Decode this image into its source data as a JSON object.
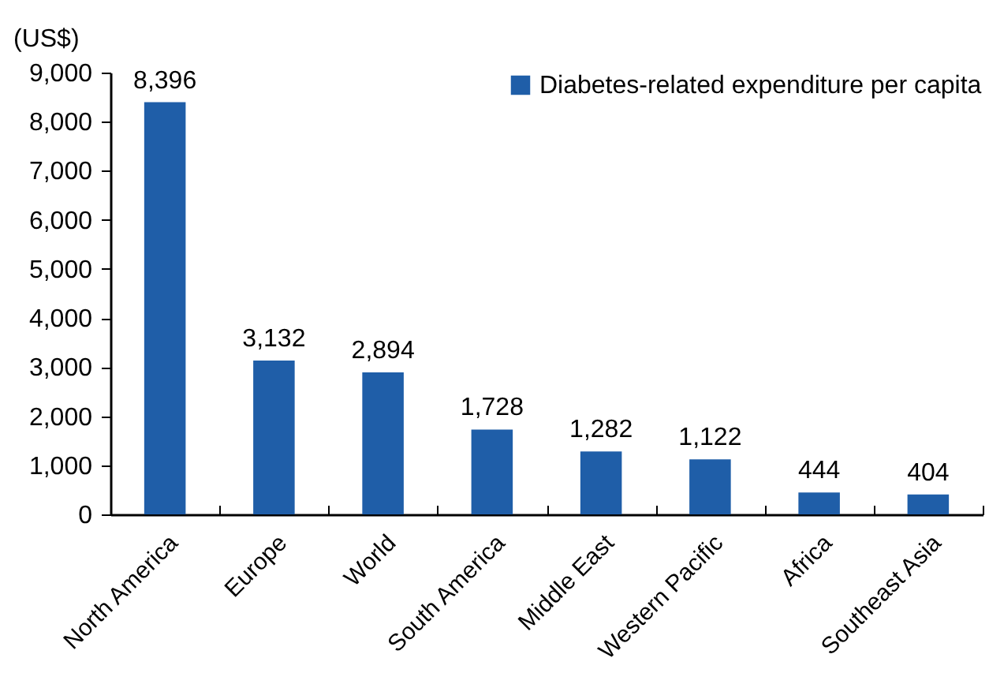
{
  "chart_data": {
    "type": "bar",
    "ylabel": "(US$)",
    "categories": [
      "North America",
      "Europe",
      "World",
      "South America",
      "Middle East",
      "Western Pacific",
      "Africa",
      "Southeast Asia"
    ],
    "series": [
      {
        "name": "Diabetes-related expenditure per capita",
        "color": "#1f5ea8",
        "values": [
          8396,
          3132,
          2894,
          1728,
          1282,
          1122,
          444,
          404
        ],
        "value_labels": [
          "8,396",
          "3,132",
          "2,894",
          "1,728",
          "1,282",
          "1,122",
          "444",
          "404"
        ]
      }
    ],
    "ylim": [
      0,
      9000
    ],
    "yticks": [
      0,
      {
        "value": 1000,
        "label": "1,000"
      },
      {
        "value": 2000,
        "label": "2,000"
      },
      {
        "value": 3000,
        "label": "3,000"
      },
      {
        "value": 4000,
        "label": "4,000"
      },
      {
        "value": 5000,
        "label": "5,000"
      },
      {
        "value": 6000,
        "label": "6,000"
      },
      {
        "value": 7000,
        "label": "7,000"
      },
      {
        "value": 8000,
        "label": "8,000"
      },
      {
        "value": 9000,
        "label": "9,000"
      }
    ],
    "legend": "top right"
  }
}
